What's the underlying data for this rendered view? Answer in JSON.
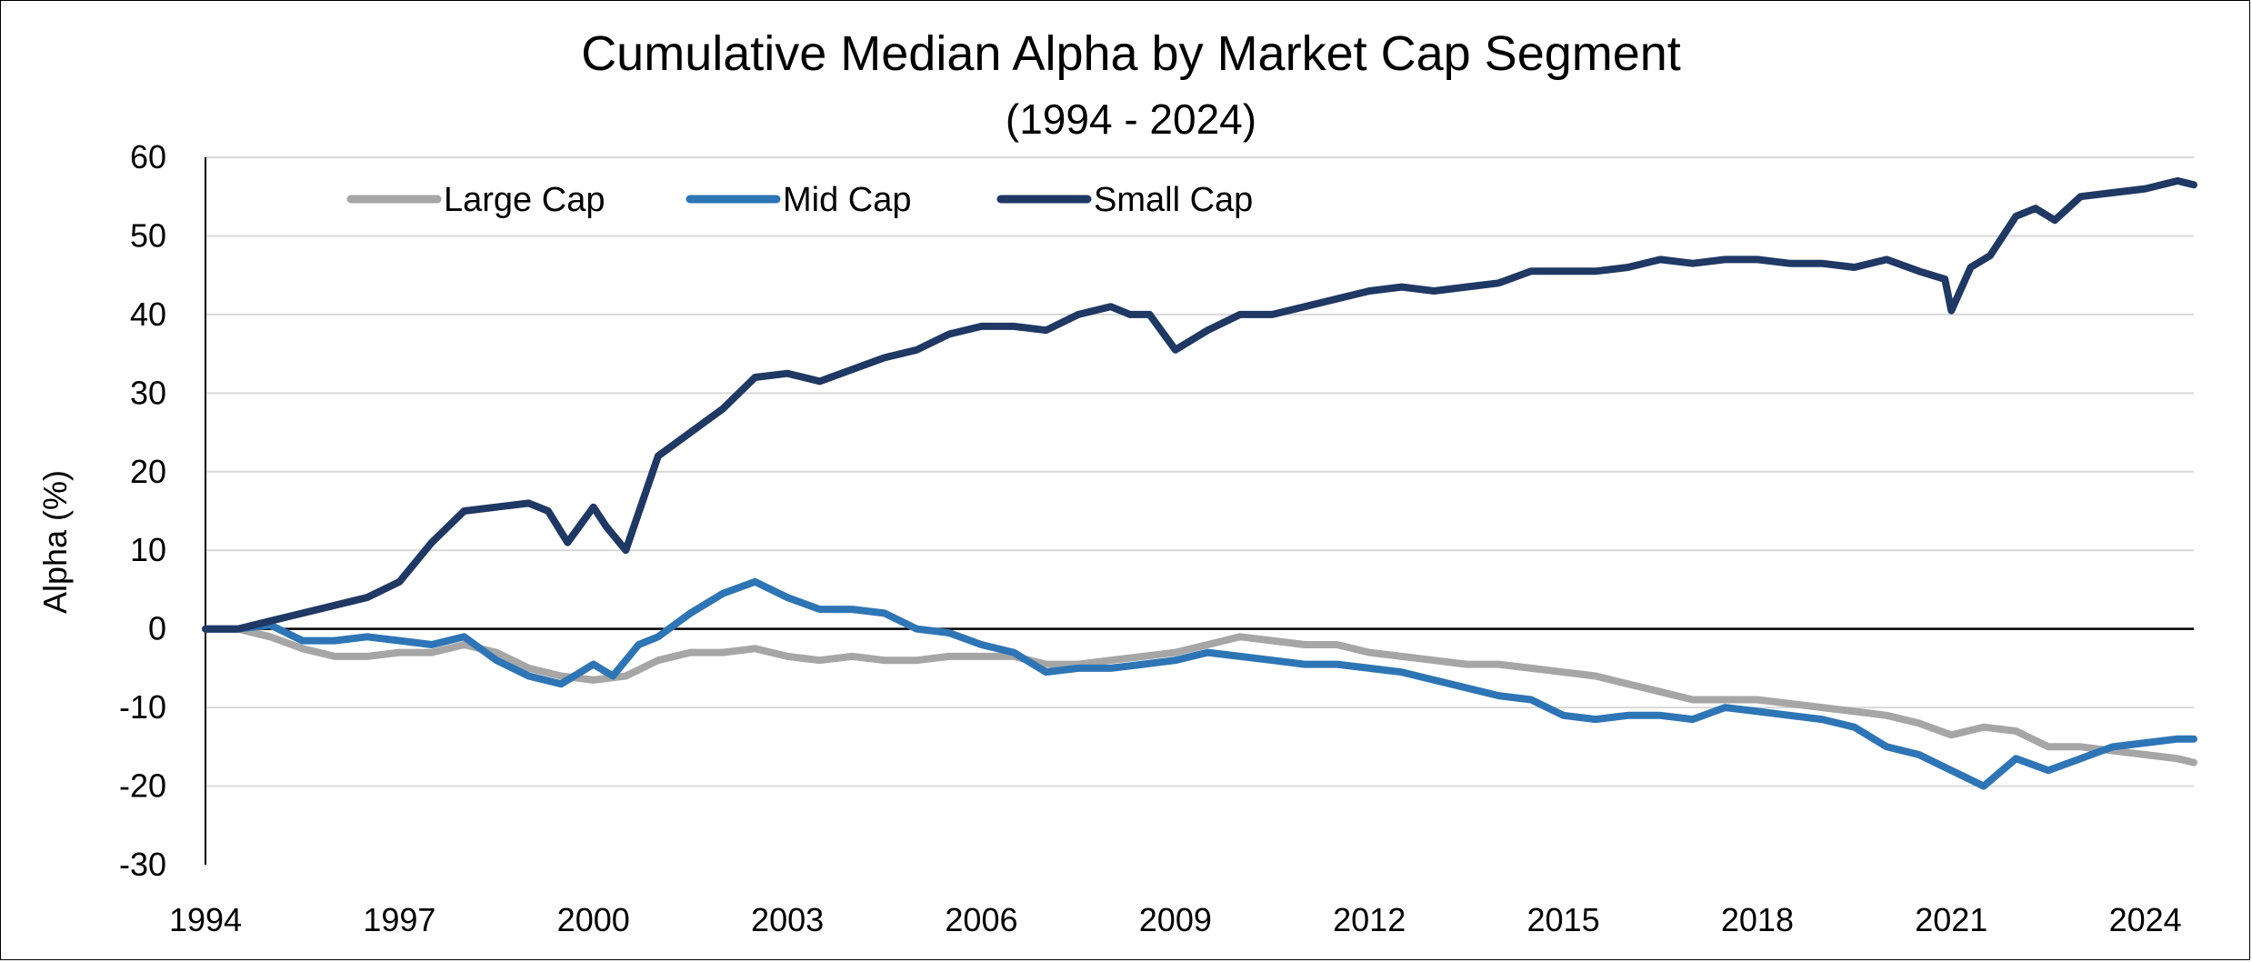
{
  "chart_data": {
    "type": "line",
    "title": "Cumulative Median Alpha by Market Cap Segment",
    "subtitle": "(1994 - 2024)",
    "xlabel": "",
    "ylabel": "Alpha (%)",
    "xlim": [
      1994,
      2024.75
    ],
    "ylim": [
      -30,
      60
    ],
    "yticks": [
      60,
      50,
      40,
      30,
      20,
      10,
      0,
      -10,
      -20,
      -30
    ],
    "xticks": [
      1994,
      1997,
      2000,
      2003,
      2006,
      2009,
      2012,
      2015,
      2018,
      2021,
      2024
    ],
    "grid": true,
    "legend_position": "top-left",
    "colors": {
      "large": "#a6a6a6",
      "mid": "#2e75b6",
      "small": "#1f3864",
      "grid": "#d9d9d9",
      "zero": "#000000"
    },
    "series": [
      {
        "name": "Large Cap",
        "color": "#a6a6a6",
        "x": [
          1994.0,
          1994.5,
          1995.0,
          1995.5,
          1996.0,
          1996.5,
          1997.0,
          1997.5,
          1998.0,
          1998.5,
          1999.0,
          1999.5,
          2000.0,
          2000.5,
          2001.0,
          2001.5,
          2002.0,
          2002.5,
          2003.0,
          2003.5,
          2004.0,
          2004.5,
          2005.0,
          2005.5,
          2006.0,
          2006.5,
          2007.0,
          2007.5,
          2008.0,
          2008.5,
          2009.0,
          2009.5,
          2010.0,
          2010.5,
          2011.0,
          2011.5,
          2012.0,
          2012.5,
          2013.0,
          2013.5,
          2014.0,
          2014.5,
          2015.0,
          2015.5,
          2016.0,
          2016.5,
          2017.0,
          2017.5,
          2018.0,
          2018.5,
          2019.0,
          2019.5,
          2020.0,
          2020.5,
          2021.0,
          2021.5,
          2022.0,
          2022.5,
          2023.0,
          2023.5,
          2024.0,
          2024.5,
          2024.75
        ],
        "values": [
          0,
          0,
          -1,
          -2.5,
          -3.5,
          -3.5,
          -3,
          -3,
          -2,
          -3,
          -5,
          -6,
          -6.5,
          -6,
          -4,
          -3,
          -3,
          -2.5,
          -3.5,
          -4,
          -3.5,
          -4,
          -4,
          -3.5,
          -3.5,
          -3.5,
          -4.5,
          -4.5,
          -4,
          -3.5,
          -3,
          -2,
          -1,
          -1.5,
          -2,
          -2,
          -3,
          -3.5,
          -4,
          -4.5,
          -4.5,
          -5,
          -5.5,
          -6,
          -7,
          -8,
          -9,
          -9,
          -9,
          -9.5,
          -10,
          -10.5,
          -11,
          -12,
          -13.5,
          -12.5,
          -13,
          -15,
          -15,
          -15.5,
          -16,
          -16.5,
          -17
        ]
      },
      {
        "name": "Mid Cap",
        "color": "#2e75b6",
        "x": [
          1994.0,
          1994.5,
          1995.0,
          1995.5,
          1996.0,
          1996.5,
          1997.0,
          1997.5,
          1998.0,
          1998.5,
          1999.0,
          1999.5,
          2000.0,
          2000.3,
          2000.7,
          2001.0,
          2001.5,
          2002.0,
          2002.5,
          2003.0,
          2003.5,
          2004.0,
          2004.5,
          2005.0,
          2005.5,
          2006.0,
          2006.5,
          2007.0,
          2007.5,
          2008.0,
          2008.5,
          2009.0,
          2009.5,
          2010.0,
          2010.5,
          2011.0,
          2011.5,
          2012.0,
          2012.5,
          2013.0,
          2013.5,
          2014.0,
          2014.5,
          2015.0,
          2015.5,
          2016.0,
          2016.5,
          2017.0,
          2017.5,
          2018.0,
          2018.5,
          2019.0,
          2019.5,
          2020.0,
          2020.5,
          2021.0,
          2021.5,
          2022.0,
          2022.5,
          2023.0,
          2023.5,
          2024.0,
          2024.5,
          2024.75
        ],
        "values": [
          0,
          0,
          0.5,
          -1.5,
          -1.5,
          -1,
          -1.5,
          -2,
          -1,
          -4,
          -6,
          -7,
          -4.5,
          -6,
          -2,
          -1,
          2,
          4.5,
          6,
          4,
          2.5,
          2.5,
          2,
          0,
          -0.5,
          -2,
          -3,
          -5.5,
          -5,
          -5,
          -4.5,
          -4,
          -3,
          -3.5,
          -4,
          -4.5,
          -4.5,
          -5,
          -5.5,
          -6.5,
          -7.5,
          -8.5,
          -9,
          -11,
          -11.5,
          -11,
          -11,
          -11.5,
          -10,
          -10.5,
          -11,
          -11.5,
          -12.5,
          -15,
          -16,
          -18,
          -20,
          -16.5,
          -18,
          -16.5,
          -15,
          -14.5,
          -14,
          -14
        ]
      },
      {
        "name": "Small Cap",
        "color": "#1f3864",
        "x": [
          1994.0,
          1994.5,
          1995.0,
          1995.5,
          1996.0,
          1996.5,
          1997.0,
          1997.5,
          1998.0,
          1998.5,
          1999.0,
          1999.3,
          1999.6,
          2000.0,
          2000.2,
          2000.5,
          2001.0,
          2001.5,
          2002.0,
          2002.5,
          2003.0,
          2003.5,
          2004.0,
          2004.5,
          2005.0,
          2005.5,
          2006.0,
          2006.5,
          2007.0,
          2007.5,
          2008.0,
          2008.3,
          2008.6,
          2009.0,
          2009.5,
          2010.0,
          2010.5,
          2011.0,
          2011.5,
          2012.0,
          2012.5,
          2013.0,
          2013.5,
          2014.0,
          2014.5,
          2015.0,
          2015.5,
          2016.0,
          2016.5,
          2017.0,
          2017.5,
          2018.0,
          2018.5,
          2019.0,
          2019.5,
          2020.0,
          2020.5,
          2020.9,
          2021.0,
          2021.3,
          2021.6,
          2022.0,
          2022.3,
          2022.6,
          2023.0,
          2023.5,
          2024.0,
          2024.5,
          2024.75
        ],
        "values": [
          0,
          0,
          1,
          2,
          3,
          4,
          6,
          11,
          15,
          15.5,
          16,
          15,
          11,
          15.5,
          13,
          10,
          22,
          25,
          28,
          32,
          32.5,
          31.5,
          33,
          34.5,
          35.5,
          37.5,
          38.5,
          38.5,
          38,
          40,
          41,
          40,
          40,
          35.5,
          38,
          40,
          40,
          41,
          42,
          43,
          43.5,
          43,
          43.5,
          44,
          45.5,
          45.5,
          45.5,
          46,
          47,
          46.5,
          47,
          47,
          46.5,
          46.5,
          46,
          47,
          45.5,
          44.5,
          40.5,
          46,
          47.5,
          52.5,
          53.5,
          52,
          55,
          55.5,
          56,
          57,
          56.5
        ]
      }
    ]
  }
}
